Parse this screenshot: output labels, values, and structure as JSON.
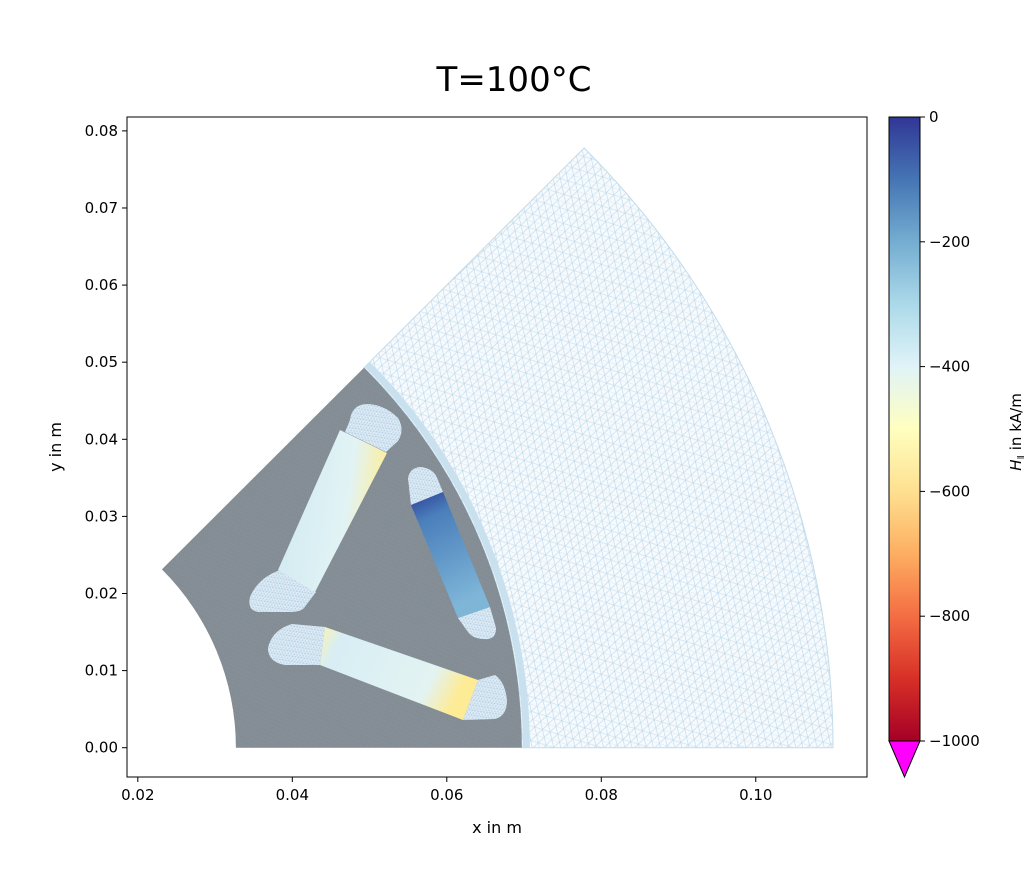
{
  "chart_data": {
    "type": "heatmap",
    "title": "T=100°C",
    "xlabel": "x in m",
    "ylabel": "y in m",
    "xlim": [
      0.0186,
      0.1144
    ],
    "ylim": [
      -0.0038,
      0.0818
    ],
    "xticks": [
      0.02,
      0.04,
      0.06,
      0.08,
      0.1
    ],
    "xtick_labels": [
      "0.02",
      "0.04",
      "0.06",
      "0.08",
      "0.10"
    ],
    "yticks": [
      0.0,
      0.01,
      0.02,
      0.03,
      0.04,
      0.05,
      0.06,
      0.07,
      0.08
    ],
    "ytick_labels": [
      "0.00",
      "0.01",
      "0.02",
      "0.03",
      "0.04",
      "0.05",
      "0.06",
      "0.07",
      "0.08"
    ],
    "grid": false,
    "geometry": {
      "sector_angle_deg": 45,
      "rotor_inner_radius": 0.0327,
      "rotor_outer_radius": 0.0697,
      "air_outer_radius": 0.11
    },
    "colorbar": {
      "label": "H_‖ in kA/m",
      "label_main": "H",
      "label_sub": "‖",
      "label_rest": " in kA/m",
      "range": [
        -1000,
        0
      ],
      "ticks": [
        0,
        -200,
        -400,
        -600,
        -800,
        -1000
      ],
      "tick_labels": [
        "0",
        "−200",
        "−400",
        "−600",
        "−800",
        "−1000"
      ],
      "colormap": "RdYlBu",
      "extend_min_color": "#ff00ff"
    },
    "colors": {
      "rotor_iron": "#838a91",
      "mesh_line": "#b9d6e8",
      "magnet_low_field": "#2c3a93",
      "magnet_typical": "#d8eef4"
    }
  }
}
